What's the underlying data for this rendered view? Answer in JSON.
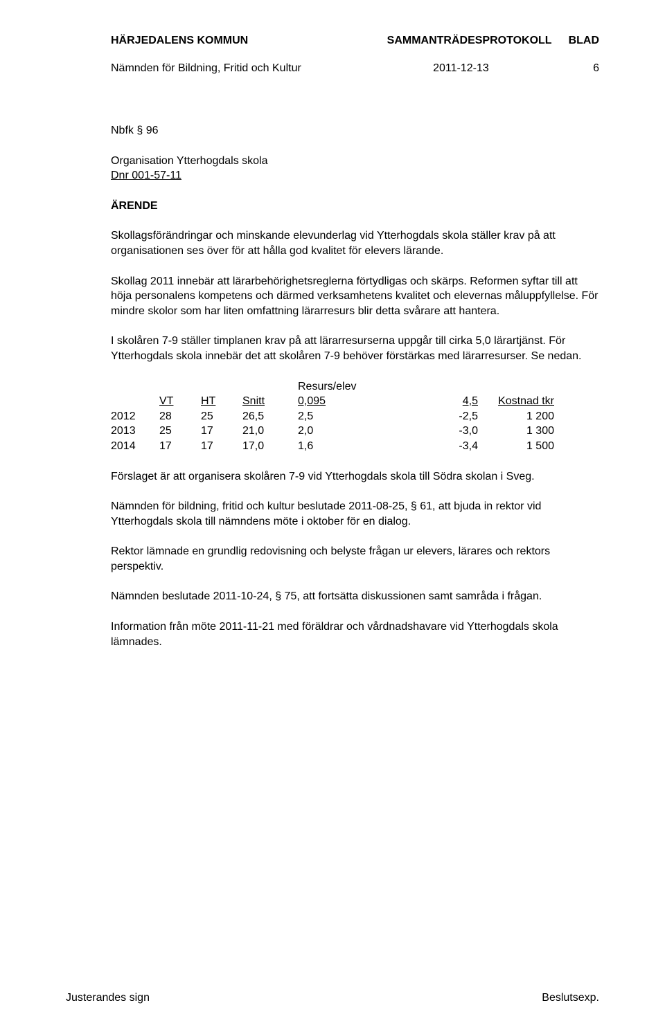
{
  "header": {
    "left": "HÄRJEDALENS KOMMUN",
    "center": "SAMMANTRÄDESPROTOKOLL",
    "right": "BLAD"
  },
  "subheader": {
    "committee": "Nämnden för Bildning, Fritid och Kultur",
    "date": "2011-12-13",
    "page": "6"
  },
  "section_no": "Nbfk § 96",
  "title": "Organisation Ytterhogdals skola",
  "dnr": "Dnr 001-57-11",
  "arende_label": "ÄRENDE",
  "paragraphs": {
    "p1": "Skollagsförändringar och minskande elevunderlag vid Ytterhogdals skola ställer krav på att organisationen ses över för att hålla god kvalitet för elevers lärande.",
    "p2": "Skollag 2011 innebär att lärarbehörighetsreglerna förtydligas och skärps. Reformen syftar till att höja personalens kompetens och därmed verksamhetens kvalitet och elevernas måluppfyllelse. För mindre skolor som har liten omfattning lärarresurs blir detta svårare att hantera.",
    "p3": "I skolåren 7-9 ställer timplanen krav på att lärarresurserna uppgår till cirka 5,0 lärartjänst. För Ytterhogdals skola innebär det att skolåren 7-9 behöver förstärkas med lärarresurser. Se nedan.",
    "p4": "Förslaget är att organisera skolåren 7-9 vid Ytterhogdals skola till Södra skolan i Sveg.",
    "p5": "Nämnden för bildning, fritid och kultur beslutade 2011-08-25, § 61, att bjuda in rektor vid Ytterhogdals skola till nämndens möte i oktober för en dialog.",
    "p6": "Rektor lämnade en grundlig redovisning och belyste frågan ur elevers, lärares och rektors perspektiv.",
    "p7": "Nämnden beslutade 2011-10-24, § 75, att fortsätta diskussionen samt samråda i frågan.",
    "p8": "Information från möte 2011-11-21 med föräldrar och vårdnadshavare vid Ytterhogdals skola lämnades."
  },
  "table": {
    "caption": "Resurs/elev",
    "columns": {
      "year": "",
      "vt": "VT",
      "ht": "HT",
      "snitt": "Snitt",
      "resurs": "0,095",
      "fourfive": "4,5",
      "kostnad": "Kostnad tkr"
    },
    "rows": [
      {
        "year": "2012",
        "vt": "28",
        "ht": "25",
        "snitt": "26,5",
        "resurs": "2,5",
        "fourfive": "-2,5",
        "kostnad": "1 200"
      },
      {
        "year": "2013",
        "vt": "25",
        "ht": "17",
        "snitt": "21,0",
        "resurs": "2,0",
        "fourfive": "-3,0",
        "kostnad": "1 300"
      },
      {
        "year": "2014",
        "vt": "17",
        "ht": "17",
        "snitt": "17,0",
        "resurs": "1,6",
        "fourfive": "-3,4",
        "kostnad": "1 500"
      }
    ]
  },
  "footer": {
    "left": "Justerandes sign",
    "right": "Beslutsexp."
  },
  "styling": {
    "font_family": "Arial",
    "body_fontsize_pt": 12,
    "text_color": "#000000",
    "background_color": "#ffffff"
  }
}
